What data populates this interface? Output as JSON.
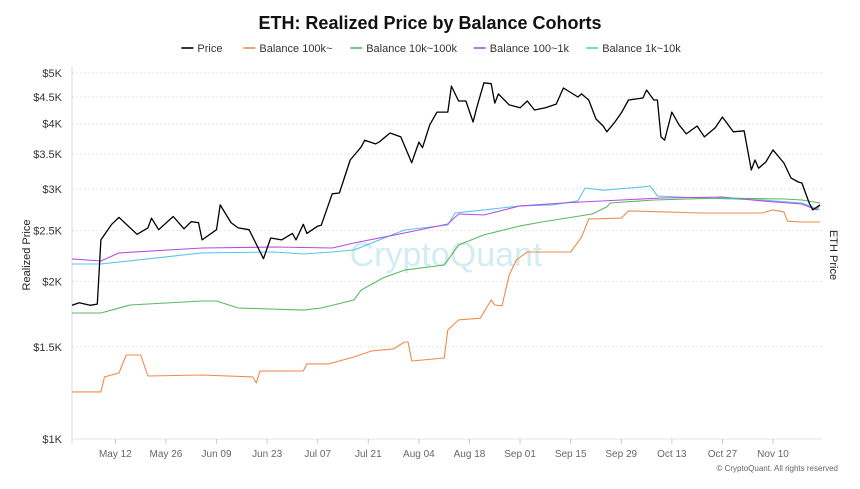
{
  "chart_data": {
    "type": "line",
    "title": "ETH: Realized Price by Balance Cohorts",
    "ylabel": "Realized Price",
    "y2label": "ETH Price",
    "yscale": "log",
    "ylim": [
      1000,
      5000
    ],
    "xlim": [
      "Apr 30",
      "Nov 23"
    ],
    "grid": true,
    "legend_position": "top",
    "yticks": [
      1000,
      1500,
      2000,
      2500,
      3000,
      3500,
      4000,
      4500,
      5000
    ],
    "ytick_labels": [
      "$1K",
      "$1.5K",
      "$2K",
      "$2.5K",
      "$3K",
      "$3.5K",
      "$4K",
      "$4.5K",
      "$5K"
    ],
    "xticks": [
      "May 12",
      "May 26",
      "Jun 09",
      "Jun 23",
      "Jul 07",
      "Jul 21",
      "Aug 04",
      "Aug 18",
      "Sep 01",
      "Sep 15",
      "Sep 29",
      "Oct 13",
      "Oct 27",
      "Nov 10"
    ],
    "watermark": "CryptoQuant",
    "copyright": "© CryptoQuant. All rights reserved",
    "series": [
      {
        "name": "Price",
        "color": "#000000",
        "width": 1.3,
        "points": [
          [
            "Apr 30",
            1800
          ],
          [
            "May 02",
            1820
          ],
          [
            "May 05",
            1800
          ],
          [
            "May 07",
            1810
          ],
          [
            "May 08",
            2400
          ],
          [
            "May 11",
            2570
          ],
          [
            "May 13",
            2650
          ],
          [
            "May 18",
            2460
          ],
          [
            "May 21",
            2530
          ],
          [
            "May 22",
            2640
          ],
          [
            "May 24",
            2510
          ],
          [
            "May 28",
            2660
          ],
          [
            "May 31",
            2520
          ],
          [
            "Jun 02",
            2600
          ],
          [
            "Jun 04",
            2590
          ],
          [
            "Jun 05",
            2400
          ],
          [
            "Jun 09",
            2510
          ],
          [
            "Jun 10",
            2800
          ],
          [
            "Jun 13",
            2590
          ],
          [
            "Jun 15",
            2530
          ],
          [
            "Jun 18",
            2510
          ],
          [
            "Jun 22",
            2210
          ],
          [
            "Jun 24",
            2420
          ],
          [
            "Jun 27",
            2400
          ],
          [
            "Jun 30",
            2470
          ],
          [
            "Jul 01",
            2400
          ],
          [
            "Jul 03",
            2570
          ],
          [
            "Jul 04",
            2470
          ],
          [
            "Jul 07",
            2550
          ],
          [
            "Jul 08",
            2560
          ],
          [
            "Jul 11",
            2940
          ],
          [
            "Jul 13",
            2950
          ],
          [
            "Jul 16",
            3410
          ],
          [
            "Jul 19",
            3610
          ],
          [
            "Jul 20",
            3720
          ],
          [
            "Jul 23",
            3660
          ],
          [
            "Jul 24",
            3690
          ],
          [
            "Jul 27",
            3840
          ],
          [
            "Jul 30",
            3775
          ],
          [
            "Aug 02",
            3370
          ],
          [
            "Aug 04",
            3690
          ],
          [
            "Aug 05",
            3600
          ],
          [
            "Aug 07",
            3980
          ],
          [
            "Aug 09",
            4210
          ],
          [
            "Aug 12",
            4210
          ],
          [
            "Aug 13",
            4720
          ],
          [
            "Aug 15",
            4420
          ],
          [
            "Aug 17",
            4420
          ],
          [
            "Aug 19",
            4030
          ],
          [
            "Aug 20",
            4290
          ],
          [
            "Aug 22",
            4790
          ],
          [
            "Aug 24",
            4770
          ],
          [
            "Aug 25",
            4380
          ],
          [
            "Aug 26",
            4560
          ],
          [
            "Aug 29",
            4345
          ],
          [
            "Sep 01",
            4290
          ],
          [
            "Sep 03",
            4420
          ],
          [
            "Sep 05",
            4250
          ],
          [
            "Sep 08",
            4290
          ],
          [
            "Sep 11",
            4360
          ],
          [
            "Sep 13",
            4680
          ],
          [
            "Sep 17",
            4500
          ],
          [
            "Sep 18",
            4560
          ],
          [
            "Sep 20",
            4440
          ],
          [
            "Sep 22",
            4085
          ],
          [
            "Sep 24",
            3960
          ],
          [
            "Sep 25",
            3860
          ],
          [
            "Sep 27",
            4010
          ],
          [
            "Sep 29",
            4195
          ],
          [
            "Oct 01",
            4440
          ],
          [
            "Oct 05",
            4480
          ],
          [
            "Oct 06",
            4640
          ],
          [
            "Oct 08",
            4440
          ],
          [
            "Oct 09",
            4440
          ],
          [
            "Oct 10",
            3775
          ],
          [
            "Oct 11",
            3720
          ],
          [
            "Oct 13",
            4210
          ],
          [
            "Oct 15",
            3980
          ],
          [
            "Oct 17",
            3825
          ],
          [
            "Oct 20",
            3960
          ],
          [
            "Oct 22",
            3775
          ],
          [
            "Oct 25",
            3930
          ],
          [
            "Oct 27",
            4120
          ],
          [
            "Oct 30",
            3860
          ],
          [
            "Nov 02",
            3877
          ],
          [
            "Nov 04",
            3264
          ],
          [
            "Nov 05",
            3410
          ],
          [
            "Nov 06",
            3290
          ],
          [
            "Nov 08",
            3380
          ],
          [
            "Nov 10",
            3565
          ],
          [
            "Nov 13",
            3366
          ],
          [
            "Nov 15",
            3150
          ],
          [
            "Nov 17",
            3096
          ],
          [
            "Nov 18",
            3083
          ],
          [
            "Nov 20",
            2823
          ],
          [
            "Nov 21",
            2738
          ],
          [
            "Nov 23",
            2800
          ]
        ]
      },
      {
        "name": "Balance 100k~",
        "color": "#ef8a4f",
        "width": 1.1,
        "points": [
          [
            "Apr 30",
            1230
          ],
          [
            "May 08",
            1230
          ],
          [
            "May 09",
            1314
          ],
          [
            "May 13",
            1337
          ],
          [
            "May 15",
            1447
          ],
          [
            "May 19",
            1447
          ],
          [
            "May 21",
            1319
          ],
          [
            "Jun 05",
            1325
          ],
          [
            "Jun 19",
            1314
          ],
          [
            "Jun 20",
            1279
          ],
          [
            "Jun 21",
            1348
          ],
          [
            "Jul 03",
            1349
          ],
          [
            "Jul 04",
            1391
          ],
          [
            "Jul 10",
            1391
          ],
          [
            "Jul 17",
            1434
          ],
          [
            "Jul 22",
            1473
          ],
          [
            "Jul 28",
            1486
          ],
          [
            "Jul 31",
            1532
          ],
          [
            "Aug 01",
            1532
          ],
          [
            "Aug 02",
            1409
          ],
          [
            "Aug 11",
            1428
          ],
          [
            "Aug 12",
            1615
          ],
          [
            "Aug 15",
            1688
          ],
          [
            "Aug 21",
            1701
          ],
          [
            "Aug 24",
            1843
          ],
          [
            "Aug 25",
            1803
          ],
          [
            "Aug 27",
            1796
          ],
          [
            "Aug 29",
            2057
          ],
          [
            "Aug 31",
            2199
          ],
          [
            "Sep 03",
            2276
          ],
          [
            "Sep 15",
            2276
          ],
          [
            "Sep 18",
            2429
          ],
          [
            "Sep 20",
            2630
          ],
          [
            "Sep 29",
            2642
          ],
          [
            "Oct 01",
            2726
          ],
          [
            "Oct 21",
            2702
          ],
          [
            "Nov 07",
            2702
          ],
          [
            "Nov 10",
            2738
          ],
          [
            "Nov 13",
            2714
          ],
          [
            "Nov 14",
            2606
          ],
          [
            "Nov 18",
            2597
          ],
          [
            "Nov 23",
            2597
          ]
        ]
      },
      {
        "name": "Balance 10k~100k",
        "color": "#5cb860",
        "width": 1.1,
        "points": [
          [
            "Apr 30",
            1740
          ],
          [
            "May 08",
            1740
          ],
          [
            "May 16",
            1803
          ],
          [
            "Jun 05",
            1835
          ],
          [
            "Jun 09",
            1835
          ],
          [
            "Jun 15",
            1779
          ],
          [
            "Jul 03",
            1763
          ],
          [
            "Jul 08",
            1779
          ],
          [
            "Jul 17",
            1843
          ],
          [
            "Jul 19",
            1925
          ],
          [
            "Jul 25",
            2030
          ],
          [
            "Jul 31",
            2102
          ],
          [
            "Aug 11",
            2149
          ],
          [
            "Aug 15",
            2347
          ],
          [
            "Aug 22",
            2453
          ],
          [
            "Sep 01",
            2552
          ],
          [
            "Sep 07",
            2597
          ],
          [
            "Sep 21",
            2690
          ],
          [
            "Sep 25",
            2775
          ],
          [
            "Sep 26",
            2823
          ],
          [
            "Oct 08",
            2861
          ],
          [
            "Oct 27",
            2886
          ],
          [
            "Nov 13",
            2873
          ],
          [
            "Nov 18",
            2861
          ],
          [
            "Nov 23",
            2823
          ]
        ]
      },
      {
        "name": "Balance 100~1k",
        "color": "#b44ee0",
        "width": 1.1,
        "points": [
          [
            "Apr 30",
            2208
          ],
          [
            "May 08",
            2187
          ],
          [
            "May 13",
            2267
          ],
          [
            "Jun 05",
            2316
          ],
          [
            "Jun 25",
            2326
          ],
          [
            "Jul 11",
            2316
          ],
          [
            "Jul 17",
            2368
          ],
          [
            "Jul 31",
            2474
          ],
          [
            "Aug 12",
            2574
          ],
          [
            "Aug 15",
            2690
          ],
          [
            "Aug 22",
            2678
          ],
          [
            "Sep 01",
            2787
          ],
          [
            "Sep 13",
            2823
          ],
          [
            "Sep 18",
            2836
          ],
          [
            "Sep 29",
            2861
          ],
          [
            "Oct 10",
            2886
          ],
          [
            "Oct 27",
            2898
          ],
          [
            "Nov 07",
            2849
          ],
          [
            "Nov 18",
            2811
          ],
          [
            "Nov 22",
            2738
          ],
          [
            "Nov 23",
            2799
          ]
        ]
      },
      {
        "name": "Balance 1k~10k",
        "color": "#5ec3ea",
        "width": 1.1,
        "points": [
          [
            "Apr 30",
            2159
          ],
          [
            "May 08",
            2159
          ],
          [
            "Jun 05",
            2267
          ],
          [
            "Jun 25",
            2276
          ],
          [
            "Jul 03",
            2256
          ],
          [
            "Jul 11",
            2276
          ],
          [
            "Jul 17",
            2296
          ],
          [
            "Jul 31",
            2507
          ],
          [
            "Aug 12",
            2563
          ],
          [
            "Aug 14",
            2702
          ],
          [
            "Aug 22",
            2738
          ],
          [
            "Sep 01",
            2787
          ],
          [
            "Sep 10",
            2799
          ],
          [
            "Sep 17",
            2849
          ],
          [
            "Sep 19",
            3015
          ],
          [
            "Sep 24",
            2987
          ],
          [
            "Oct 05",
            3030
          ],
          [
            "Oct 07",
            3043
          ],
          [
            "Oct 09",
            2911
          ],
          [
            "Oct 21",
            2886
          ],
          [
            "Nov 07",
            2861
          ],
          [
            "Nov 18",
            2823
          ],
          [
            "Nov 23",
            2738
          ]
        ]
      }
    ]
  }
}
